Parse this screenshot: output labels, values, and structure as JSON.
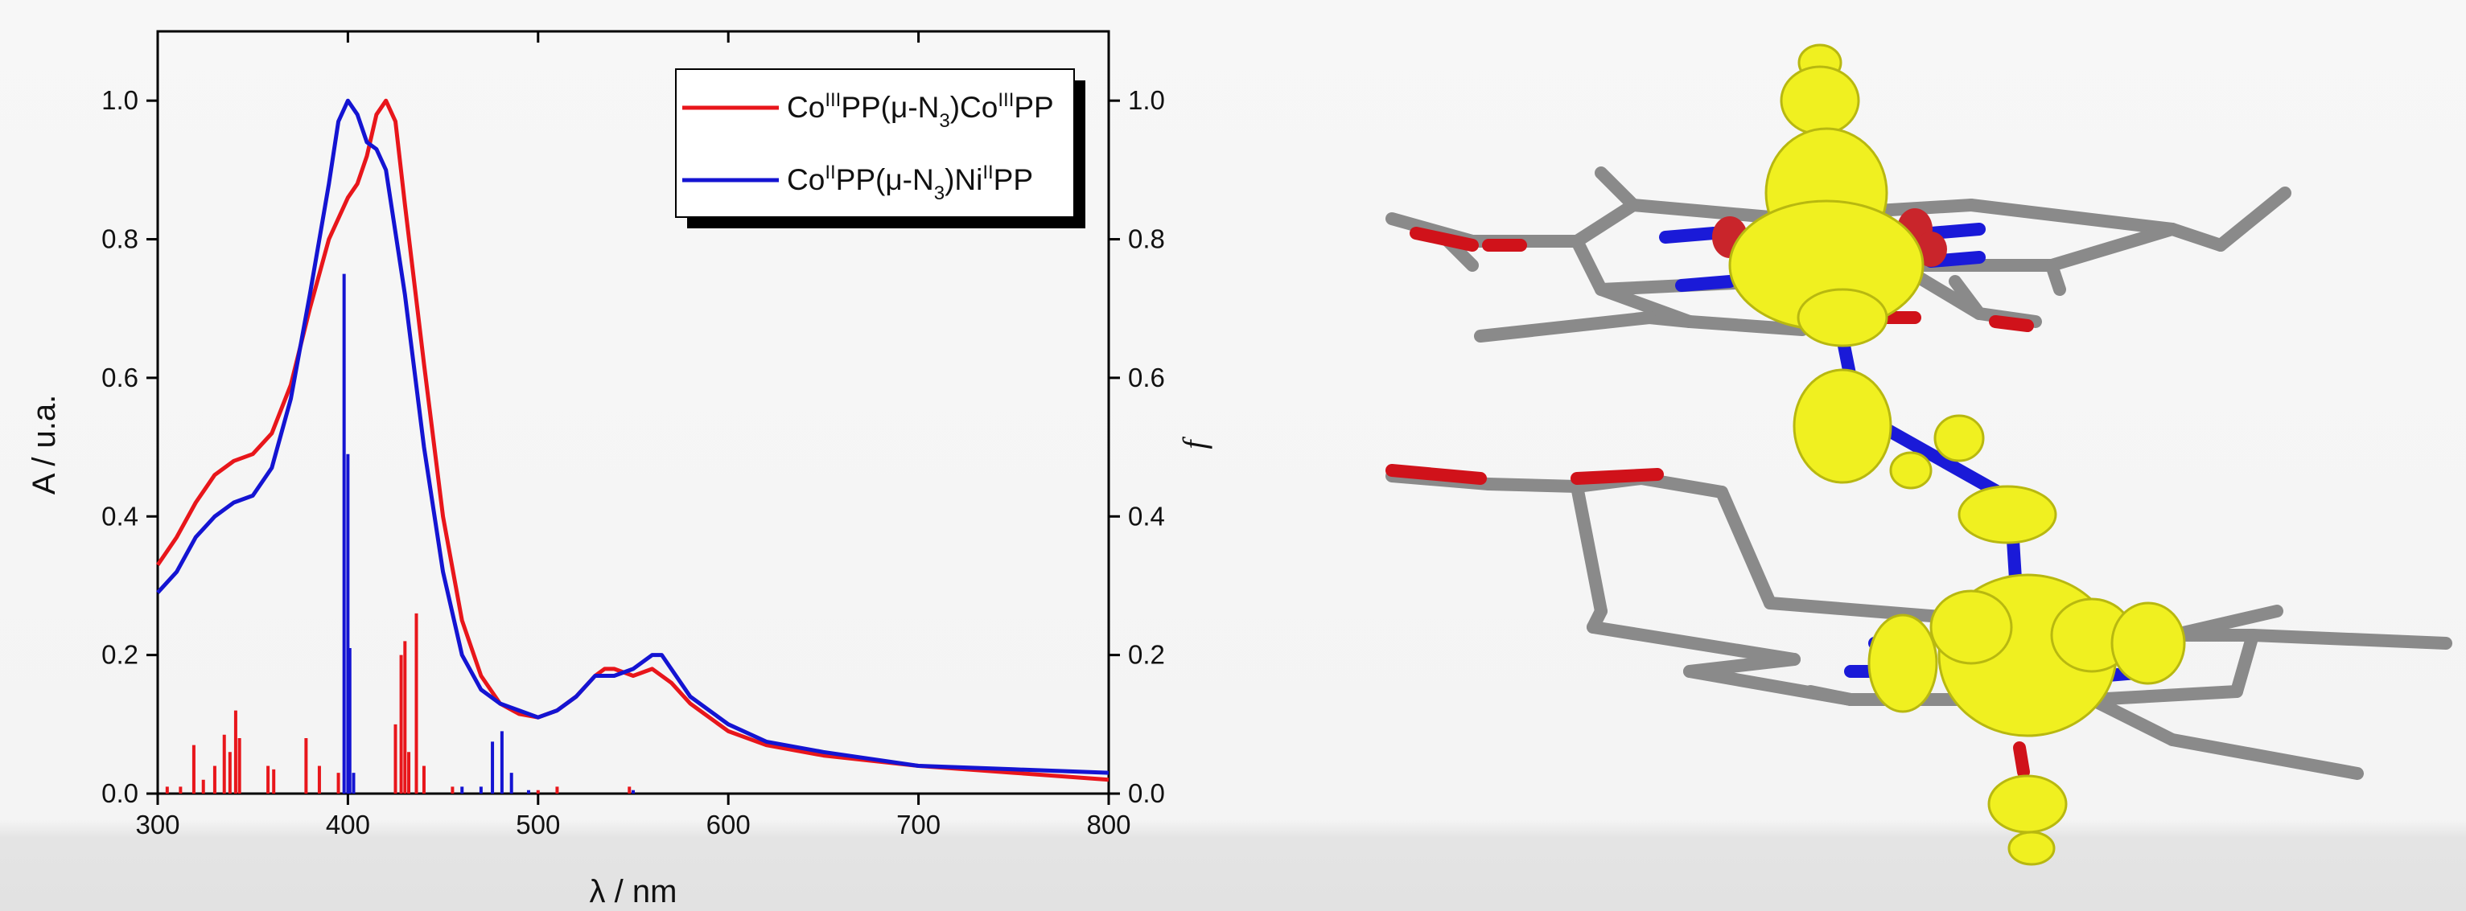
{
  "chart_data": {
    "type": "line",
    "xlabel": "λ / nm",
    "ylabel": "A / u.a.",
    "y2label": "f",
    "xlim": [
      300,
      800
    ],
    "xticks": [
      300,
      400,
      500,
      600,
      700,
      800
    ],
    "ylim": [
      0,
      1.1
    ],
    "yticks": [
      {
        "value": 0,
        "label": "0.0"
      },
      {
        "value": 0.2,
        "label": "0.2"
      },
      {
        "value": 0.4,
        "label": "0.4"
      },
      {
        "value": 0.6,
        "label": "0.6"
      },
      {
        "value": 0.8,
        "label": "0.8"
      },
      {
        "value": 1,
        "label": "1.0"
      }
    ],
    "y2lim": [
      0,
      1.1
    ],
    "y2ticks": [
      {
        "value": 0,
        "label": "0.0"
      },
      {
        "value": 0.2,
        "label": "0.2"
      },
      {
        "value": 0.4,
        "label": "0.4"
      },
      {
        "value": 0.6,
        "label": "0.6"
      },
      {
        "value": 0.8,
        "label": "0.8"
      },
      {
        "value": 1,
        "label": "1.0"
      }
    ],
    "legend": "upper right",
    "series": [
      {
        "name": "CoIIIPP(μ-N3)CoIIIPP",
        "color": "#e8161b",
        "x": [
          300,
          310,
          320,
          330,
          340,
          350,
          360,
          370,
          380,
          390,
          400,
          405,
          410,
          415,
          420,
          425,
          430,
          440,
          450,
          460,
          470,
          480,
          490,
          500,
          510,
          520,
          530,
          535,
          540,
          550,
          560,
          570,
          580,
          600,
          620,
          650,
          700,
          750,
          800
        ],
        "values": [
          0.33,
          0.37,
          0.42,
          0.46,
          0.48,
          0.49,
          0.52,
          0.59,
          0.7,
          0.8,
          0.86,
          0.88,
          0.92,
          0.98,
          1.0,
          0.97,
          0.85,
          0.62,
          0.4,
          0.25,
          0.17,
          0.13,
          0.115,
          0.11,
          0.12,
          0.14,
          0.17,
          0.18,
          0.18,
          0.17,
          0.18,
          0.16,
          0.13,
          0.09,
          0.07,
          0.055,
          0.04,
          0.03,
          0.02
        ]
      },
      {
        "name": "CoIIPP(μ-N3)NiIIPP",
        "color": "#1414d2",
        "x": [
          300,
          310,
          320,
          330,
          340,
          350,
          360,
          370,
          380,
          390,
          395,
          400,
          405,
          410,
          415,
          420,
          430,
          440,
          450,
          460,
          470,
          480,
          490,
          500,
          510,
          520,
          530,
          540,
          550,
          560,
          565,
          570,
          580,
          600,
          620,
          650,
          700,
          750,
          800
        ],
        "values": [
          0.29,
          0.32,
          0.37,
          0.4,
          0.42,
          0.43,
          0.47,
          0.57,
          0.72,
          0.88,
          0.97,
          1.0,
          0.98,
          0.94,
          0.93,
          0.9,
          0.72,
          0.5,
          0.32,
          0.2,
          0.15,
          0.13,
          0.12,
          0.11,
          0.12,
          0.14,
          0.17,
          0.17,
          0.18,
          0.2,
          0.2,
          0.18,
          0.14,
          0.1,
          0.075,
          0.06,
          0.04,
          0.035,
          0.03
        ]
      },
      {
        "type": "stick",
        "axis": "y2",
        "color": "#e8161b",
        "x": [
          305,
          312,
          319,
          324,
          330,
          335,
          338,
          341,
          343,
          358,
          361,
          378,
          385,
          395,
          425,
          428,
          430,
          432,
          436,
          440,
          455,
          500,
          510,
          548
        ],
        "values": [
          0.01,
          0.01,
          0.07,
          0.02,
          0.04,
          0.085,
          0.06,
          0.12,
          0.08,
          0.04,
          0.035,
          0.08,
          0.04,
          0.03,
          0.1,
          0.2,
          0.22,
          0.06,
          0.26,
          0.04,
          0.01,
          0.005,
          0.01,
          0.01
        ]
      },
      {
        "type": "stick",
        "axis": "y2",
        "color": "#1414d2",
        "x": [
          398,
          400,
          401,
          403,
          460,
          470,
          476,
          481,
          486,
          495,
          550
        ],
        "values": [
          0.75,
          0.49,
          0.21,
          0.03,
          0.01,
          0.01,
          0.075,
          0.09,
          0.03,
          0.005,
          0.005
        ]
      }
    ]
  }
}
